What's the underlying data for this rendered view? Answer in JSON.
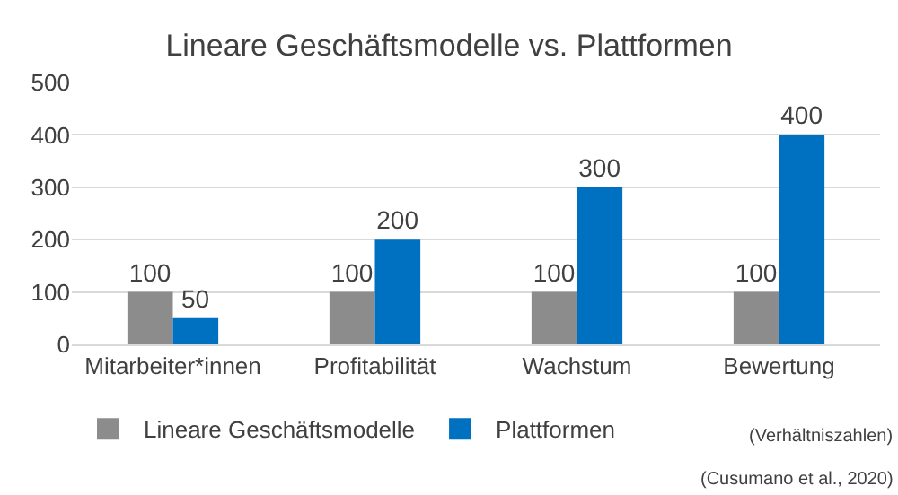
{
  "chart_data": {
    "type": "bar",
    "title": "Lineare Geschäftsmodelle vs. Plattformen",
    "categories": [
      "Mitarbeiter*innen",
      "Profitabilität",
      "Wachstum",
      "Bewertung"
    ],
    "series": [
      {
        "name": "Lineare Geschäftsmodelle",
        "color": "#8c8c8c",
        "values": [
          100,
          100,
          100,
          100
        ]
      },
      {
        "name": "Plattformen",
        "color": "#0070c0",
        "values": [
          50,
          200,
          300,
          400
        ]
      }
    ],
    "ylim": [
      0,
      500
    ],
    "yticks": [
      0,
      100,
      200,
      300,
      400,
      500
    ],
    "grid": "y",
    "legend": "bottom",
    "data_labels": true,
    "annotations": [
      "(Verhältniszahlen)",
      "(Cusumano et al., 2020)"
    ]
  }
}
